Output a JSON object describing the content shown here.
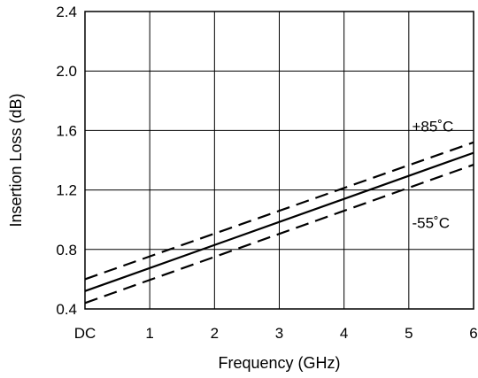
{
  "chart_data": {
    "type": "line",
    "xlabel": "Frequency (GHz)",
    "ylabel": "Insertion Loss (dB)",
    "xlim": [
      0,
      6
    ],
    "ylim": [
      0.4,
      2.4
    ],
    "x_ticks": [
      0,
      1,
      2,
      3,
      4,
      5,
      6
    ],
    "x_tick_labels": [
      "DC",
      "1",
      "2",
      "3",
      "4",
      "5",
      "6"
    ],
    "y_ticks": [
      0.4,
      0.8,
      1.2,
      1.6,
      2.0,
      2.4
    ],
    "y_tick_labels": [
      "0.4",
      "0.8",
      "1.2",
      "1.6",
      "2.0",
      "2.4"
    ],
    "grid": true,
    "series": [
      {
        "name": "+85˚C",
        "style": "dashed",
        "x": [
          0,
          6
        ],
        "y": [
          0.6,
          1.52
        ]
      },
      {
        "style": "solid",
        "x": [
          0,
          6
        ],
        "y": [
          0.52,
          1.45
        ]
      },
      {
        "name": "-55˚C",
        "style": "dashed",
        "x": [
          0,
          6
        ],
        "y": [
          0.44,
          1.37
        ]
      }
    ],
    "annotations": [
      {
        "text": "+85˚C",
        "x": 5.05,
        "y": 1.63
      },
      {
        "text": "-55˚C",
        "x": 5.05,
        "y": 0.98
      }
    ]
  }
}
